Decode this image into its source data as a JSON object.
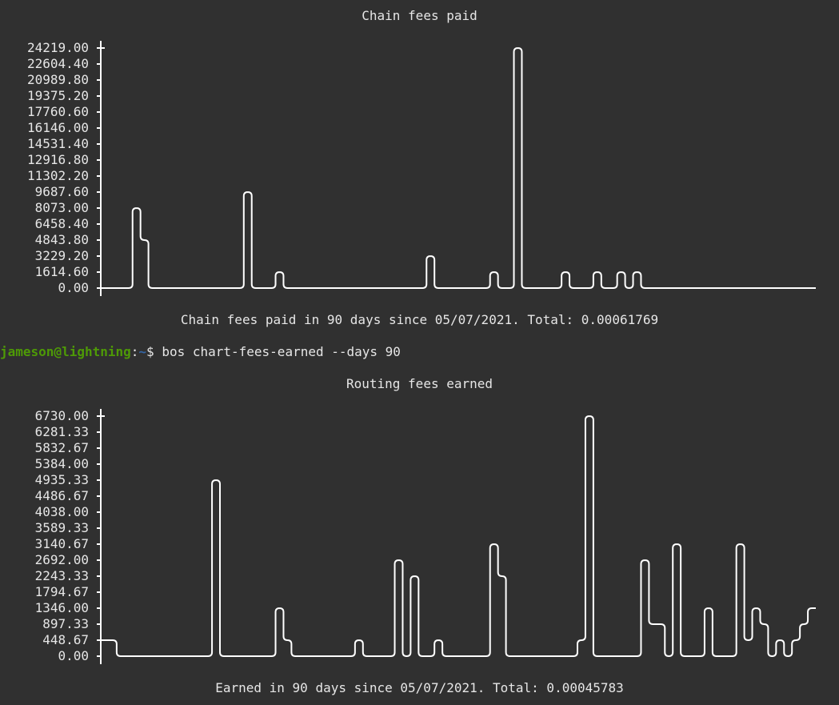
{
  "terminal": {
    "prompt_user": "jameson@lightning",
    "prompt_sep": ":",
    "prompt_path": "~",
    "prompt_dollar": "$ ",
    "command": "bos chart-fees-earned --days 90"
  },
  "colors": {
    "background": "#303030",
    "foreground": "#e6e6e6",
    "line": "#ffffff",
    "prompt_user": "#4e9a06",
    "prompt_path": "#3465a4"
  },
  "charts": [
    {
      "title": "Chain fees paid",
      "summary": "Chain fees paid in 90 days since 05/07/2021. Total: 0.00061769",
      "yticks": [
        "24219.00",
        "22604.40",
        "20989.80",
        "19375.20",
        "17760.60",
        "16146.00",
        "14531.40",
        "12916.80",
        "11302.20",
        "9687.60",
        "8073.00",
        "6458.40",
        "4843.80",
        "3229.20",
        "1614.60",
        "0.00"
      ]
    },
    {
      "title": "Routing fees earned",
      "summary": "Earned in 90 days since 05/07/2021. Total: 0.00045783",
      "yticks": [
        "6730.00",
        "6281.33",
        "5832.67",
        "5384.00",
        "4935.33",
        "4486.67",
        "4038.00",
        "3589.33",
        "3140.67",
        "2692.00",
        "2243.33",
        "1794.67",
        "1346.00",
        "897.33",
        "448.67",
        "0.00"
      ]
    }
  ],
  "chart_data": [
    {
      "type": "line",
      "title": "Chain fees paid",
      "xlabel": "",
      "ylabel": "",
      "ylim": [
        0,
        24219
      ],
      "x": [
        1,
        2,
        3,
        4,
        5,
        6,
        7,
        8,
        9,
        10,
        11,
        12,
        13,
        14,
        15,
        16,
        17,
        18,
        19,
        20,
        21,
        22,
        23,
        24,
        25,
        26,
        27,
        28,
        29,
        30,
        31,
        32,
        33,
        34,
        35,
        36,
        37,
        38,
        39,
        40,
        41,
        42,
        43,
        44,
        45,
        46,
        47,
        48,
        49,
        50,
        51,
        52,
        53,
        54,
        55,
        56,
        57,
        58,
        59,
        60,
        61,
        62,
        63,
        64,
        65,
        66,
        67,
        68,
        69,
        70,
        71,
        72,
        73,
        74,
        75,
        76,
        77,
        78,
        79,
        80,
        81,
        82,
        83,
        84,
        85,
        86,
        87,
        88,
        89,
        90
      ],
      "values": [
        0,
        0,
        0,
        0,
        8073,
        4843.8,
        0,
        0,
        0,
        0,
        0,
        0,
        0,
        0,
        0,
        0,
        0,
        0,
        9687.6,
        0,
        0,
        0,
        1614.6,
        0,
        0,
        0,
        0,
        0,
        0,
        0,
        0,
        0,
        0,
        0,
        0,
        0,
        0,
        0,
        0,
        0,
        0,
        3229.2,
        0,
        0,
        0,
        0,
        0,
        0,
        0,
        1614.6,
        0,
        0,
        24219,
        0,
        0,
        0,
        0,
        0,
        1614.6,
        0,
        0,
        0,
        1614.6,
        0,
        0,
        1614.6,
        0,
        1614.6,
        0,
        0,
        0,
        0,
        0,
        0,
        0,
        0,
        0,
        0,
        0,
        0,
        0,
        0,
        0,
        0,
        0,
        0,
        0,
        0,
        0,
        0
      ]
    },
    {
      "type": "line",
      "title": "Routing fees earned",
      "xlabel": "",
      "ylabel": "",
      "ylim": [
        0,
        6730
      ],
      "x": [
        1,
        2,
        3,
        4,
        5,
        6,
        7,
        8,
        9,
        10,
        11,
        12,
        13,
        14,
        15,
        16,
        17,
        18,
        19,
        20,
        21,
        22,
        23,
        24,
        25,
        26,
        27,
        28,
        29,
        30,
        31,
        32,
        33,
        34,
        35,
        36,
        37,
        38,
        39,
        40,
        41,
        42,
        43,
        44,
        45,
        46,
        47,
        48,
        49,
        50,
        51,
        52,
        53,
        54,
        55,
        56,
        57,
        58,
        59,
        60,
        61,
        62,
        63,
        64,
        65,
        66,
        67,
        68,
        69,
        70,
        71,
        72,
        73,
        74,
        75,
        76,
        77,
        78,
        79,
        80,
        81,
        82,
        83,
        84,
        85,
        86,
        87,
        88,
        89,
        90
      ],
      "values": [
        448.67,
        448.67,
        0,
        0,
        0,
        0,
        0,
        0,
        0,
        0,
        0,
        0,
        0,
        0,
        4935.33,
        0,
        0,
        0,
        0,
        0,
        0,
        0,
        1346,
        448.67,
        0,
        0,
        0,
        0,
        0,
        0,
        0,
        0,
        448.67,
        0,
        0,
        0,
        0,
        2692,
        0,
        2243.33,
        0,
        0,
        448.67,
        0,
        0,
        0,
        0,
        0,
        0,
        3140.67,
        2243.33,
        0,
        0,
        0,
        0,
        0,
        0,
        0,
        0,
        0,
        448.67,
        6730,
        0,
        0,
        0,
        0,
        0,
        0,
        2692,
        897.33,
        897.33,
        0,
        3140.67,
        0,
        0,
        0,
        1346,
        0,
        0,
        0,
        3140.67,
        448.67,
        1346,
        897.33,
        0,
        448.67,
        0,
        448.67,
        897.33,
        1346
      ]
    }
  ]
}
